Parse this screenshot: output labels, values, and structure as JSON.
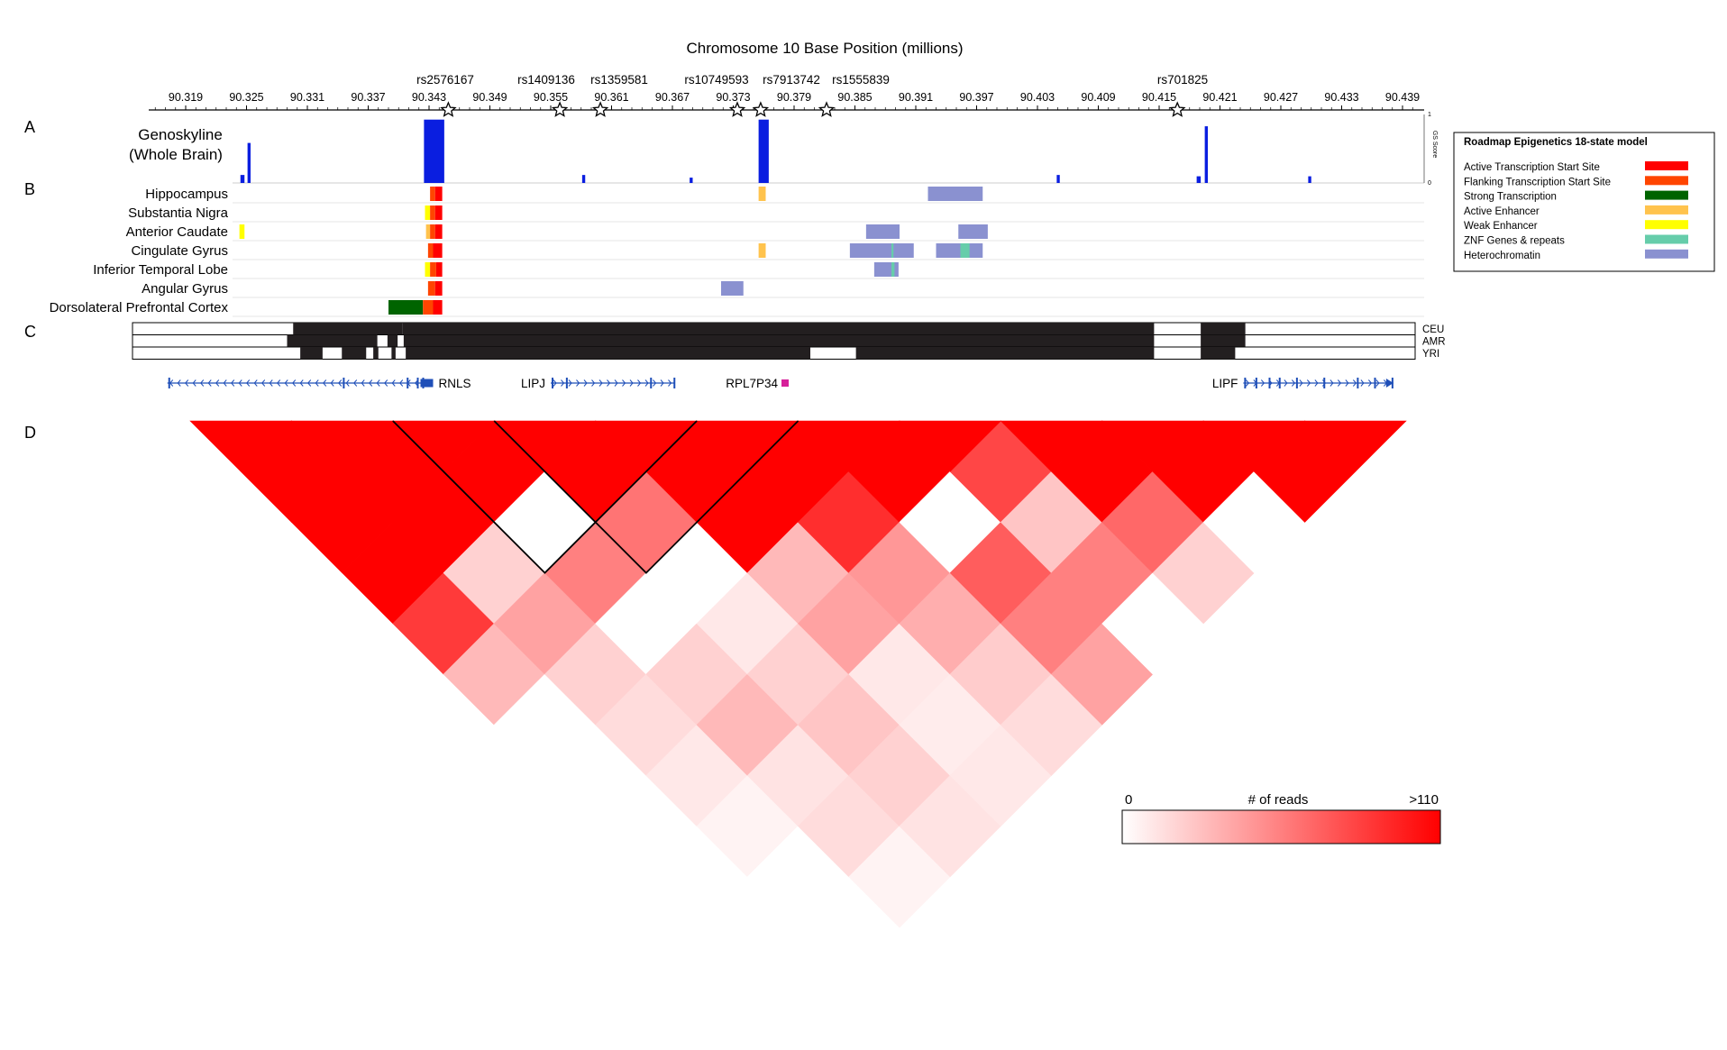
{
  "figure": {
    "title": "Chromosome 10 Base Position (millions)",
    "panel_labels": [
      "A",
      "B",
      "C",
      "D"
    ]
  },
  "axis": {
    "ticks": [
      "90.319",
      "90.325",
      "90.331",
      "90.337",
      "90.343",
      "90.349",
      "90.355",
      "90.361",
      "90.367",
      "90.373",
      "90.379",
      "90.385",
      "90.391",
      "90.397",
      "90.403",
      "90.409",
      "90.415",
      "90.421",
      "90.427",
      "90.433",
      "90.439"
    ]
  },
  "snps": [
    {
      "label": "rs2576167",
      "pos": 90.3449
    },
    {
      "label": "rs1409136",
      "pos": 90.3559
    },
    {
      "label": "rs1359581",
      "pos": 90.3599
    },
    {
      "label": "rs10749593",
      "pos": 90.3734
    },
    {
      "label": "rs7913742",
      "pos": 90.3757
    },
    {
      "label": "rs1555839",
      "pos": 90.3822
    },
    {
      "label": "rs701825",
      "pos": 90.4168
    }
  ],
  "genoskyline": {
    "label_line1": "Genoskyline",
    "label_line2": "(Whole Brain)",
    "axis_label": "GS Score",
    "axis_max": "1",
    "axis_min": "0",
    "peaks": [
      {
        "start": 90.3244,
        "end": 90.3248,
        "score": 0.12
      },
      {
        "start": 90.3251,
        "end": 90.3254,
        "score": 0.6
      },
      {
        "start": 90.3425,
        "end": 90.3445,
        "score": 0.95
      },
      {
        "start": 90.3581,
        "end": 90.3584,
        "score": 0.12
      },
      {
        "start": 90.3687,
        "end": 90.369,
        "score": 0.08
      },
      {
        "start": 90.3755,
        "end": 90.3765,
        "score": 0.95
      },
      {
        "start": 90.4049,
        "end": 90.4052,
        "score": 0.12
      },
      {
        "start": 90.4187,
        "end": 90.4191,
        "score": 0.1
      },
      {
        "start": 90.4195,
        "end": 90.4198,
        "score": 0.85
      },
      {
        "start": 90.4297,
        "end": 90.43,
        "score": 0.1
      }
    ]
  },
  "roadmap": {
    "legend_title": "Roadmap Epigenetics 18-state model",
    "states": [
      {
        "name": "Active Transcription Start Site",
        "color": "#ff0000"
      },
      {
        "name": "Flanking Transcription Start Site",
        "color": "#ff4500"
      },
      {
        "name": "Strong Transcription",
        "color": "#006400"
      },
      {
        "name": "Active Enhancer",
        "color": "#ffc34d"
      },
      {
        "name": "Weak Enhancer",
        "color": "#ffff00"
      },
      {
        "name": "ZNF Genes & repeats",
        "color": "#66cdaa"
      },
      {
        "name": "Heterochromatin",
        "color": "#8a91d0"
      }
    ],
    "tissues": [
      {
        "name": "Hippocampus",
        "segments": [
          {
            "start": 90.3431,
            "end": 90.3436,
            "state": 1
          },
          {
            "start": 90.3436,
            "end": 90.3443,
            "state": 0
          },
          {
            "start": 90.3755,
            "end": 90.3762,
            "state": 3
          },
          {
            "start": 90.3922,
            "end": 90.3976,
            "state": 6
          }
        ]
      },
      {
        "name": "Substantia Nigra",
        "segments": [
          {
            "start": 90.3426,
            "end": 90.3431,
            "state": 4
          },
          {
            "start": 90.3431,
            "end": 90.3436,
            "state": 1
          },
          {
            "start": 90.3436,
            "end": 90.3443,
            "state": 0
          }
        ]
      },
      {
        "name": "Anterior Caudate",
        "segments": [
          {
            "start": 90.3243,
            "end": 90.3248,
            "state": 4
          },
          {
            "start": 90.3427,
            "end": 90.3431,
            "state": 3
          },
          {
            "start": 90.3431,
            "end": 90.3436,
            "state": 1
          },
          {
            "start": 90.3436,
            "end": 90.3443,
            "state": 0
          },
          {
            "start": 90.3861,
            "end": 90.3894,
            "state": 6
          },
          {
            "start": 90.3952,
            "end": 90.3981,
            "state": 6
          }
        ]
      },
      {
        "name": "Cingulate Gyrus",
        "segments": [
          {
            "start": 90.3429,
            "end": 90.3434,
            "state": 1
          },
          {
            "start": 90.3434,
            "end": 90.3443,
            "state": 0
          },
          {
            "start": 90.3755,
            "end": 90.3762,
            "state": 3
          },
          {
            "start": 90.3845,
            "end": 90.3908,
            "state": 6
          },
          {
            "start": 90.3886,
            "end": 90.3888,
            "state": 5
          },
          {
            "start": 90.393,
            "end": 90.3976,
            "state": 6
          },
          {
            "start": 90.3954,
            "end": 90.3963,
            "state": 5
          }
        ]
      },
      {
        "name": "Inferior Temporal Lobe",
        "segments": [
          {
            "start": 90.3426,
            "end": 90.3431,
            "state": 4
          },
          {
            "start": 90.3431,
            "end": 90.3437,
            "state": 1
          },
          {
            "start": 90.3437,
            "end": 90.3443,
            "state": 0
          },
          {
            "start": 90.3869,
            "end": 90.3893,
            "state": 6
          },
          {
            "start": 90.3886,
            "end": 90.3889,
            "state": 5
          }
        ]
      },
      {
        "name": "Angular Gyrus",
        "segments": [
          {
            "start": 90.3429,
            "end": 90.3436,
            "state": 1
          },
          {
            "start": 90.3436,
            "end": 90.3443,
            "state": 0
          },
          {
            "start": 90.3718,
            "end": 90.374,
            "state": 6
          }
        ]
      },
      {
        "name": "Dorsolateral Prefrontal Cortex",
        "segments": [
          {
            "start": 90.339,
            "end": 90.3424,
            "state": 2
          },
          {
            "start": 90.3424,
            "end": 90.3434,
            "state": 1
          },
          {
            "start": 90.3434,
            "end": 90.3443,
            "state": 0
          }
        ]
      }
    ]
  },
  "haplotypes": {
    "populations": [
      "CEU",
      "AMR",
      "YRI"
    ],
    "rows": [
      [
        {
          "start": 90.3296,
          "end": 90.3404
        },
        {
          "start": 90.3404,
          "end": 90.3406
        },
        {
          "start": 90.3406,
          "end": 90.4145
        },
        {
          "start": 90.4191,
          "end": 90.4235
        }
      ],
      [
        {
          "start": 90.329,
          "end": 90.3379
        },
        {
          "start": 90.3389,
          "end": 90.3399
        },
        {
          "start": 90.3405,
          "end": 90.4145
        },
        {
          "start": 90.4191,
          "end": 90.4235
        }
      ],
      [
        {
          "start": 90.3303,
          "end": 90.3325
        },
        {
          "start": 90.3344,
          "end": 90.3368
        },
        {
          "start": 90.3375,
          "end": 90.338
        },
        {
          "start": 90.3393,
          "end": 90.3397
        },
        {
          "start": 90.3407,
          "end": 90.3806
        },
        {
          "start": 90.3851,
          "end": 90.4145
        },
        {
          "start": 90.4191,
          "end": 90.4225
        }
      ]
    ]
  },
  "genes": [
    {
      "name": "RNLS",
      "start": 90.3172,
      "end": 90.3434,
      "strand": "-",
      "color": "#1f4fb8"
    },
    {
      "name": "LIPJ",
      "start": 90.355,
      "end": 90.3672,
      "strand": "+",
      "color": "#1f4fb8"
    },
    {
      "name": "RPL7P34",
      "start": 90.3775,
      "end": 90.3782,
      "strand": "+",
      "color": "#d6209a"
    },
    {
      "name": "LIPF",
      "start": 90.4233,
      "end": 90.4381,
      "strand": "+",
      "color": "#1f4fb8"
    }
  ],
  "hic": {
    "scale_min": "0",
    "scale_label": "# of reads",
    "scale_max": ">110",
    "bins": 12,
    "matrix": [
      [
        null,
        110,
        110,
        110,
        85,
        30,
        0,
        0,
        0,
        0,
        0,
        0
      ],
      [
        null,
        null,
        110,
        110,
        20,
        40,
        20,
        15,
        10,
        5,
        0,
        0
      ],
      [
        null,
        null,
        null,
        110,
        0,
        55,
        0,
        20,
        30,
        12,
        15,
        5
      ],
      [
        null,
        null,
        null,
        null,
        110,
        60,
        0,
        10,
        20,
        25,
        20,
        12
      ],
      [
        null,
        null,
        null,
        null,
        null,
        110,
        110,
        30,
        40,
        10,
        8,
        10
      ],
      [
        null,
        null,
        null,
        null,
        null,
        null,
        110,
        90,
        45,
        35,
        22,
        15
      ],
      [
        null,
        null,
        null,
        null,
        null,
        null,
        null,
        110,
        0,
        70,
        55,
        40
      ],
      [
        null,
        null,
        null,
        null,
        null,
        null,
        null,
        null,
        80,
        25,
        55,
        0
      ],
      [
        null,
        null,
        null,
        null,
        null,
        null,
        null,
        null,
        null,
        110,
        65,
        20
      ],
      [
        null,
        null,
        null,
        null,
        null,
        null,
        null,
        null,
        null,
        null,
        110,
        0
      ],
      [
        null,
        null,
        null,
        null,
        null,
        null,
        null,
        null,
        null,
        null,
        null,
        110
      ],
      [
        null,
        null,
        null,
        null,
        null,
        null,
        null,
        null,
        null,
        null,
        null,
        null
      ]
    ],
    "highlight_triangles": [
      [
        2,
        4
      ],
      [
        3,
        5
      ]
    ]
  }
}
